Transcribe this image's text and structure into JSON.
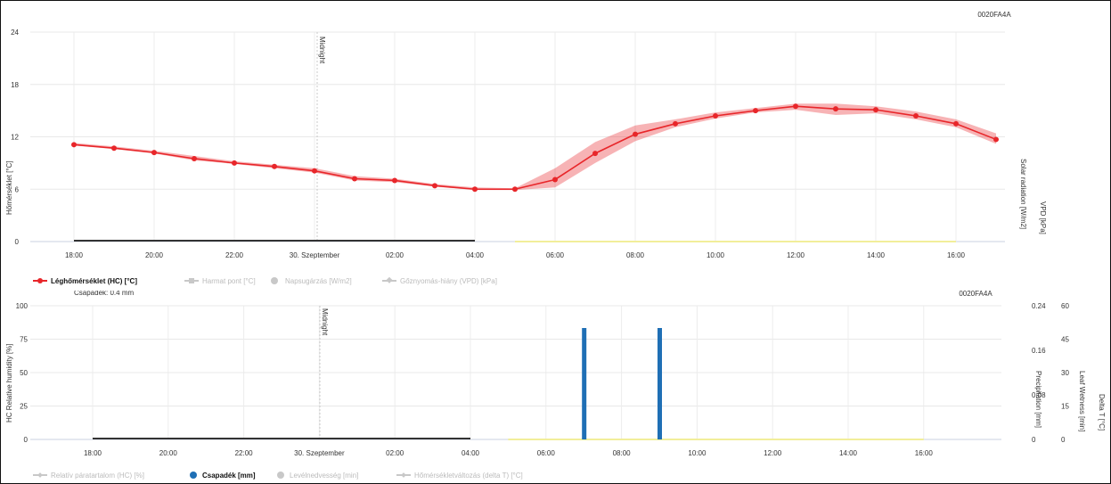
{
  "chart_data": [
    {
      "type": "line",
      "device_id": "0020FA4A",
      "x": [
        "18:00",
        "19:00",
        "20:00",
        "21:00",
        "22:00",
        "23:00",
        "00:00",
        "01:00",
        "02:00",
        "03:00",
        "04:00",
        "05:00",
        "06:00",
        "07:00",
        "08:00",
        "09:00",
        "10:00",
        "11:00",
        "12:00",
        "13:00",
        "14:00",
        "15:00",
        "16:00",
        "17:00"
      ],
      "x_tick_labels": [
        "18:00",
        "20:00",
        "22:00",
        "30. Szeptember",
        "02:00",
        "04:00",
        "06:00",
        "08:00",
        "10:00",
        "12:00",
        "14:00",
        "16:00"
      ],
      "ylabel_left": "Hőmérséklet [°C]",
      "ylabel_right": [
        "Solar radiation [W/m2]",
        "VPD [kPa]"
      ],
      "ylim": [
        0,
        24
      ],
      "y_ticks": [
        0,
        6,
        12,
        18,
        24
      ],
      "midnight_label": "Midnight",
      "grid": true,
      "series": [
        {
          "name": "Léghőmérséklet (HC) [°C]",
          "color": "#e8262a",
          "values": [
            11.1,
            10.7,
            10.2,
            9.5,
            9.0,
            8.6,
            8.1,
            7.2,
            7.0,
            6.4,
            6.0,
            6.0,
            7.1,
            10.1,
            12.3,
            13.5,
            14.4,
            15.0,
            15.5,
            15.2,
            15.1,
            14.4,
            13.5,
            11.7
          ],
          "range_low": [
            11.0,
            10.6,
            10.1,
            9.3,
            8.9,
            8.4,
            7.9,
            7.0,
            6.8,
            6.3,
            5.9,
            5.9,
            6.2,
            9.0,
            11.5,
            13.1,
            14.1,
            14.8,
            15.1,
            14.5,
            14.7,
            14.0,
            13.1,
            11.2
          ],
          "range_high": [
            11.3,
            10.9,
            10.4,
            9.8,
            9.2,
            8.8,
            8.4,
            7.5,
            7.2,
            6.6,
            6.2,
            6.1,
            8.4,
            11.4,
            13.3,
            14.0,
            14.8,
            15.3,
            15.8,
            15.8,
            15.5,
            14.9,
            14.0,
            12.4
          ],
          "visible": true
        },
        {
          "name": "Harmat pont [°C]",
          "visible": false
        },
        {
          "name": "Napsugárzás [W/m2]",
          "visible": false
        },
        {
          "name": "Gőznyomás-hiány (VPD) [kPa]",
          "visible": false
        }
      ]
    },
    {
      "type": "bar",
      "device_id": "0020FA4A",
      "header": "Csapadék: 0.4 mm",
      "x": [
        "18:00",
        "19:00",
        "20:00",
        "21:00",
        "22:00",
        "23:00",
        "00:00",
        "01:00",
        "02:00",
        "03:00",
        "04:00",
        "05:00",
        "06:00",
        "07:00",
        "08:00",
        "09:00",
        "10:00",
        "11:00",
        "12:00",
        "13:00",
        "14:00",
        "15:00",
        "16:00",
        "17:00"
      ],
      "x_tick_labels": [
        "18:00",
        "20:00",
        "22:00",
        "30. Szeptember",
        "02:00",
        "04:00",
        "06:00",
        "08:00",
        "10:00",
        "12:00",
        "14:00",
        "16:00"
      ],
      "ylabel_left": "HC Relative humidity [%]",
      "ylabel_right": [
        "Precipitation [mm]",
        "Leaf Wetness [min]",
        "Delta T [°C]"
      ],
      "ylim_left": [
        0,
        100
      ],
      "y_ticks_left": [
        0,
        25,
        50,
        75,
        100
      ],
      "ylim_precip": [
        0,
        0.24
      ],
      "y_ticks_precip": [
        "0",
        "0.08",
        "0.16",
        "0.24"
      ],
      "ylim_leaf": [
        0,
        60
      ],
      "y_ticks_leaf": [
        0,
        15,
        30,
        45,
        60
      ],
      "midnight_label": "Midnight",
      "grid": true,
      "series": [
        {
          "name": "Relatív páratartalom (HC) [%]",
          "visible": false
        },
        {
          "name": "Csapadék [mm]",
          "color": "#1f6fb5",
          "visible": true,
          "bars": [
            {
              "x": "07:00",
              "value": 0.2
            },
            {
              "x": "09:00",
              "value": 0.2
            }
          ]
        },
        {
          "name": "Levélnedvesség [min]",
          "visible": false
        },
        {
          "name": "Hőmérsékletváltozás (delta T) [°C]",
          "visible": false
        }
      ]
    }
  ]
}
